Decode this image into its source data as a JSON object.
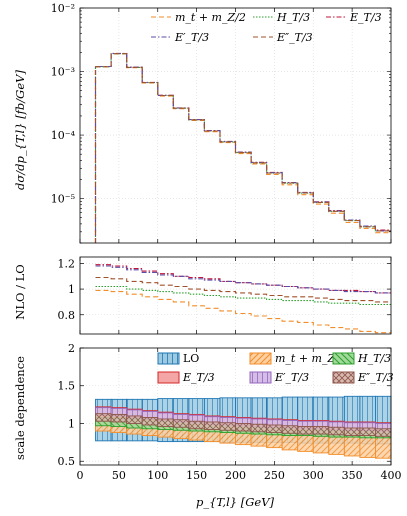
{
  "chart_data": [
    {
      "type": "line",
      "panel": "main",
      "ylabel": "dσ/dp_{T,l} [fb/GeV]",
      "yscale": "log",
      "ylim": [
        2e-06,
        0.01
      ],
      "xlim": [
        0,
        400
      ],
      "yticks": [
        "10⁻²",
        "10⁻³",
        "10⁻⁴",
        "10⁻⁵"
      ],
      "ytick_values": [
        0.01,
        0.001,
        0.0001,
        1e-05
      ],
      "grid": true,
      "legend": "top-right",
      "bin_edges": [
        20,
        40,
        60,
        80,
        100,
        120,
        140,
        160,
        180,
        200,
        220,
        240,
        260,
        280,
        300,
        320,
        340,
        360,
        380,
        400
      ],
      "series": [
        {
          "name": "mt + mZ/2",
          "legend_text": "m_t + m_Z/2",
          "color": "#f28e2b",
          "dash": "5,3",
          "values": [
            0.00118,
            0.0019,
            0.00115,
            0.00066,
            0.00041,
            0.00026,
            0.00017,
            0.000113,
            7.6e-05,
            5.1e-05,
            3.5e-05,
            2.4e-05,
            1.65e-05,
            1.15e-05,
            8.2e-06,
            5.9e-06,
            4.2e-06,
            3.4e-06,
            2.9e-06
          ]
        },
        {
          "name": "HT/3",
          "legend_text": "H_T/3",
          "color": "#2ca02c",
          "dash": "1.5,1.5",
          "values": [
            0.00119,
            0.00191,
            0.00116,
            0.00067,
            0.00042,
            0.000265,
            0.000174,
            0.000116,
            7.8e-05,
            5.3e-05,
            3.65e-05,
            2.52e-05,
            1.75e-05,
            1.22e-05,
            8.7e-06,
            6.3e-06,
            4.5e-06,
            3.6e-06,
            3.1e-06
          ]
        },
        {
          "name": "ET/3",
          "legend_text": "E_T/3",
          "color": "#c0143c",
          "dash": "5,2,1.5,2",
          "values": [
            0.0012,
            0.00193,
            0.00117,
            0.000675,
            0.000423,
            0.000268,
            0.000176,
            0.000118,
            7.95e-05,
            5.4e-05,
            3.72e-05,
            2.58e-05,
            1.79e-05,
            1.25e-05,
            8.9e-06,
            6.5e-06,
            4.6e-06,
            3.7e-06,
            3.2e-06
          ]
        },
        {
          "name": "E'T/3",
          "legend_text": "E′_T/3",
          "color": "#5b4ea8",
          "dash": "5,2,1.5,2",
          "values": [
            0.0012,
            0.00192,
            0.00117,
            0.000672,
            0.000421,
            0.000267,
            0.000175,
            0.000117,
            7.9e-05,
            5.37e-05,
            3.7e-05,
            2.56e-05,
            1.78e-05,
            1.24e-05,
            8.8e-06,
            6.4e-06,
            4.6e-06,
            3.7e-06,
            3.1e-06
          ]
        },
        {
          "name": "E''T/3",
          "legend_text": "E″_T/3",
          "color": "#a0522d",
          "dash": "5,3",
          "values": [
            0.00119,
            0.00191,
            0.00116,
            0.00067,
            0.00042,
            0.000265,
            0.000174,
            0.000116,
            7.8e-05,
            5.3e-05,
            3.66e-05,
            2.53e-05,
            1.76e-05,
            1.23e-05,
            8.7e-06,
            6.3e-06,
            4.5e-06,
            3.6e-06,
            3.1e-06
          ]
        }
      ]
    },
    {
      "type": "line",
      "panel": "ratio",
      "ylabel": "NLO / LO",
      "ylim": [
        0.65,
        1.25
      ],
      "yticks": [
        "1.2",
        "1",
        "0.8"
      ],
      "ytick_values": [
        1.2,
        1.0,
        0.8
      ],
      "xlim": [
        0,
        400
      ],
      "grid": true,
      "bin_edges": [
        20,
        40,
        60,
        80,
        100,
        120,
        140,
        160,
        180,
        200,
        220,
        240,
        260,
        280,
        300,
        320,
        340,
        360,
        380,
        400
      ],
      "series": [
        {
          "name": "mt + mZ/2",
          "values": [
            0.99,
            0.98,
            0.96,
            0.94,
            0.92,
            0.9,
            0.87,
            0.85,
            0.83,
            0.81,
            0.79,
            0.77,
            0.75,
            0.74,
            0.72,
            0.7,
            0.69,
            0.67,
            0.66
          ]
        },
        {
          "name": "HT/3",
          "values": [
            1.02,
            1.02,
            1.0,
            0.99,
            0.98,
            0.97,
            0.96,
            0.95,
            0.94,
            0.93,
            0.93,
            0.92,
            0.91,
            0.91,
            0.9,
            0.89,
            0.89,
            0.88,
            0.88
          ]
        },
        {
          "name": "ET/3",
          "values": [
            1.19,
            1.18,
            1.16,
            1.14,
            1.12,
            1.1,
            1.09,
            1.08,
            1.06,
            1.05,
            1.04,
            1.03,
            1.02,
            1.01,
            1.0,
            0.99,
            0.99,
            0.98,
            0.97
          ]
        },
        {
          "name": "E'T/3",
          "values": [
            1.18,
            1.17,
            1.15,
            1.13,
            1.11,
            1.1,
            1.08,
            1.07,
            1.06,
            1.05,
            1.04,
            1.03,
            1.02,
            1.01,
            1.0,
            0.99,
            0.98,
            0.98,
            0.97
          ]
        },
        {
          "name": "E''T/3",
          "values": [
            1.09,
            1.08,
            1.06,
            1.05,
            1.03,
            1.02,
            1.0,
            0.99,
            0.98,
            0.97,
            0.96,
            0.95,
            0.94,
            0.94,
            0.93,
            0.92,
            0.91,
            0.91,
            0.9
          ]
        }
      ]
    },
    {
      "type": "area",
      "panel": "scale",
      "ylabel": "scale dependence",
      "xlabel": "p_{T,l} [GeV]",
      "ylim": [
        0.45,
        2.0
      ],
      "yticks": [
        "2",
        "1.5",
        "1",
        "0.5"
      ],
      "ytick_values": [
        2,
        1.5,
        1,
        0.5
      ],
      "xlim": [
        0,
        400
      ],
      "xticks": [
        "0",
        "50",
        "100",
        "150",
        "200",
        "250",
        "300",
        "350",
        "400"
      ],
      "xtick_values": [
        0,
        50,
        100,
        150,
        200,
        250,
        300,
        350,
        400
      ],
      "grid": true,
      "legend": "top-right",
      "bin_edges": [
        20,
        40,
        60,
        80,
        100,
        120,
        140,
        160,
        180,
        200,
        220,
        240,
        260,
        280,
        300,
        320,
        340,
        360,
        380,
        400
      ],
      "bands": [
        {
          "name": "LO",
          "legend_text": "LO",
          "color": "#1f77b4",
          "fill": "#9ecae1",
          "hatch": "vert",
          "upper": [
            1.32,
            1.32,
            1.32,
            1.32,
            1.33,
            1.33,
            1.33,
            1.33,
            1.34,
            1.34,
            1.34,
            1.34,
            1.35,
            1.35,
            1.35,
            1.35,
            1.36,
            1.36,
            1.36
          ],
          "lower": [
            0.77,
            0.77,
            0.77,
            0.77,
            0.76,
            0.76,
            0.76,
            0.76,
            0.75,
            0.75,
            0.75,
            0.75,
            0.75,
            0.74,
            0.74,
            0.74,
            0.74,
            0.73,
            0.73
          ]
        },
        {
          "name": "mt + mZ/2",
          "legend_text": "m_t + m_Z/2",
          "color": "#f28e2b",
          "fill": "#fdd0a2",
          "hatch": "diag",
          "upper": [
            1.1,
            1.08,
            1.06,
            1.04,
            1.02,
            1.0,
            0.99,
            0.97,
            0.96,
            0.95,
            0.94,
            0.93,
            0.92,
            0.91,
            0.9,
            0.89,
            0.88,
            0.87,
            0.86
          ],
          "lower": [
            0.9,
            0.88,
            0.86,
            0.84,
            0.82,
            0.8,
            0.78,
            0.76,
            0.74,
            0.72,
            0.7,
            0.68,
            0.65,
            0.63,
            0.61,
            0.59,
            0.57,
            0.55,
            0.54
          ]
        },
        {
          "name": "HT/3",
          "legend_text": "H_T/3",
          "color": "#2ca02c",
          "fill": "#a1d99b",
          "hatch": "anti",
          "upper": [
            1.08,
            1.07,
            1.06,
            1.05,
            1.04,
            1.03,
            1.02,
            1.01,
            1.0,
            0.99,
            0.99,
            0.98,
            0.97,
            0.97,
            0.96,
            0.95,
            0.95,
            0.94,
            0.94
          ],
          "lower": [
            0.97,
            0.96,
            0.94,
            0.93,
            0.92,
            0.91,
            0.9,
            0.89,
            0.88,
            0.87,
            0.86,
            0.85,
            0.84,
            0.84,
            0.83,
            0.82,
            0.82,
            0.81,
            0.81
          ]
        },
        {
          "name": "ET/3",
          "legend_text": "E_T/3",
          "color": "#d62728",
          "fill": "#f4a6a6",
          "hatch": "none",
          "upper": [
            1.22,
            1.21,
            1.19,
            1.17,
            1.15,
            1.13,
            1.12,
            1.1,
            1.09,
            1.08,
            1.07,
            1.06,
            1.05,
            1.04,
            1.04,
            1.03,
            1.02,
            1.02,
            1.01
          ],
          "lower": [
            1.12,
            1.11,
            1.09,
            1.07,
            1.05,
            1.03,
            1.02,
            1.0,
            0.99,
            0.98,
            0.97,
            0.96,
            0.95,
            0.94,
            0.94,
            0.93,
            0.92,
            0.92,
            0.91
          ]
        },
        {
          "name": "E'T/3",
          "legend_text": "E′_T/3",
          "color": "#9467bd",
          "fill": "#d4bde6",
          "hatch": "vert",
          "upper": [
            1.21,
            1.2,
            1.18,
            1.16,
            1.14,
            1.12,
            1.11,
            1.09,
            1.08,
            1.07,
            1.06,
            1.05,
            1.04,
            1.03,
            1.03,
            1.02,
            1.01,
            1.01,
            1.0
          ],
          "lower": [
            1.11,
            1.1,
            1.08,
            1.06,
            1.04,
            1.02,
            1.01,
            0.99,
            0.98,
            0.97,
            0.96,
            0.95,
            0.94,
            0.93,
            0.93,
            0.92,
            0.91,
            0.91,
            0.9
          ]
        },
        {
          "name": "E''T/3",
          "legend_text": "E″_T/3",
          "color": "#8c564b",
          "fill": "#d9b8b0",
          "hatch": "cross",
          "upper": [
            1.13,
            1.12,
            1.1,
            1.08,
            1.06,
            1.05,
            1.03,
            1.02,
            1.01,
            1.0,
            0.99,
            0.98,
            0.97,
            0.96,
            0.96,
            0.95,
            0.94,
            0.94,
            0.93
          ],
          "lower": [
            1.03,
            1.02,
            1.0,
            0.98,
            0.96,
            0.95,
            0.93,
            0.92,
            0.91,
            0.9,
            0.89,
            0.88,
            0.87,
            0.86,
            0.86,
            0.85,
            0.84,
            0.84,
            0.83
          ]
        }
      ]
    }
  ]
}
